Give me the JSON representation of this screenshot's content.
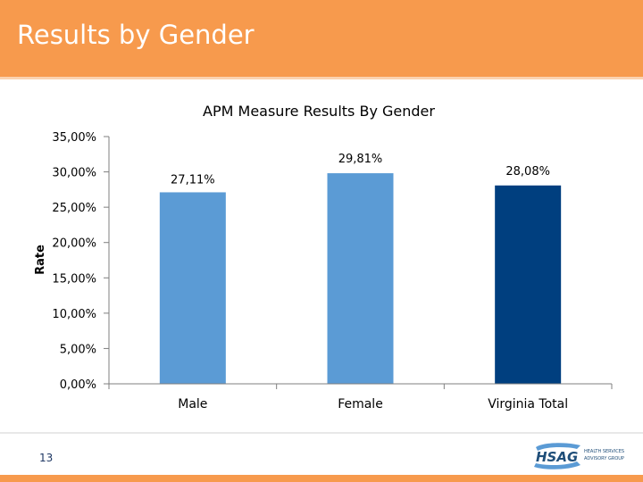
{
  "slide": {
    "title": "Results by Gender",
    "page_number": "13"
  },
  "logo": {
    "text": "HSAG",
    "tagline_1": "HEALTH SERVICES",
    "tagline_2": "ADVISORY GROUP",
    "color": "#1f4e79"
  },
  "colors": {
    "header": "#f79a4d",
    "bar_light": "#5b9bd5",
    "bar_dark": "#003f7f"
  },
  "chart_data": {
    "type": "bar",
    "title": "APM Measure Results By Gender",
    "xlabel": "",
    "ylabel": "Rate",
    "categories": [
      "Male",
      "Female",
      "Virginia Total"
    ],
    "values": [
      27.11,
      29.81,
      28.08
    ],
    "value_labels": [
      "27,11%",
      "29,81%",
      "28,08%"
    ],
    "bar_colors": [
      "#5b9bd5",
      "#5b9bd5",
      "#003f7f"
    ],
    "ylim": [
      0,
      35
    ],
    "yticks": [
      0,
      5,
      10,
      15,
      20,
      25,
      30,
      35
    ],
    "ytick_labels": [
      "0,00%",
      "5,00%",
      "10,00%",
      "15,00%",
      "20,00%",
      "25,00%",
      "30,00%",
      "35,00%"
    ],
    "grid": false,
    "legend": "none"
  }
}
